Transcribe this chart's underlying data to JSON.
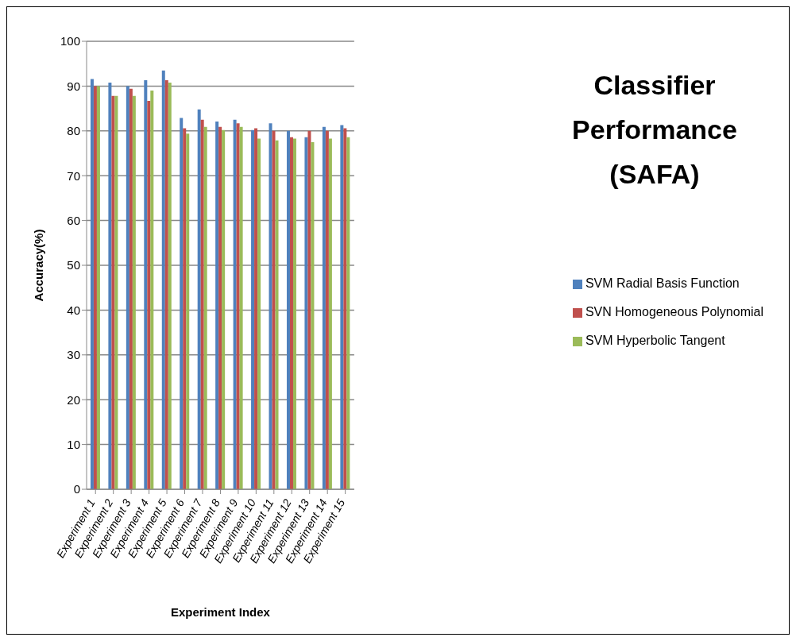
{
  "chart_data": {
    "type": "bar",
    "title": "Classifier Performance (SAFA)",
    "xlabel": "Experiment Index",
    "ylabel": "Accuracy(%)",
    "categories": [
      "Experiment 1",
      "Experiment 2",
      "Experiment 3",
      "Experiment 4",
      "Experiment 5",
      "Experiment 6",
      "Experiment 7",
      "Experiment 8",
      "Experiment 9",
      "Experiment 10",
      "Experiment 11",
      "Experiment 12",
      "Experiment 13",
      "Experiment 14",
      "Experiment 15"
    ],
    "series": [
      {
        "name": "SVM Radial Basis Function",
        "color": "#4f81bd",
        "values": [
          91.6,
          90.8,
          90,
          91.3,
          93.5,
          82.9,
          84.8,
          82.1,
          82.5,
          80.2,
          81.7,
          80,
          78.6,
          80.9,
          81.3
        ]
      },
      {
        "name": "SVN Homogeneous Polynomial",
        "color": "#c0504d",
        "values": [
          90,
          87.8,
          89.4,
          86.7,
          91.3,
          80.6,
          82.5,
          80.9,
          81.7,
          80.6,
          80,
          78.6,
          80,
          80,
          80.6
        ]
      },
      {
        "name": "SVM Hyperbolic Tangent",
        "color": "#9bbb59",
        "values": [
          90,
          87.8,
          87.8,
          89,
          90.8,
          79.4,
          80.9,
          80.2,
          80.9,
          78.3,
          77.9,
          78.3,
          77.5,
          78.3,
          78.6
        ]
      }
    ],
    "ylim": [
      0,
      100
    ],
    "yticks": [
      0,
      10,
      20,
      30,
      40,
      50,
      60,
      70,
      80,
      90,
      100
    ],
    "grid": "y",
    "legend": "right"
  }
}
